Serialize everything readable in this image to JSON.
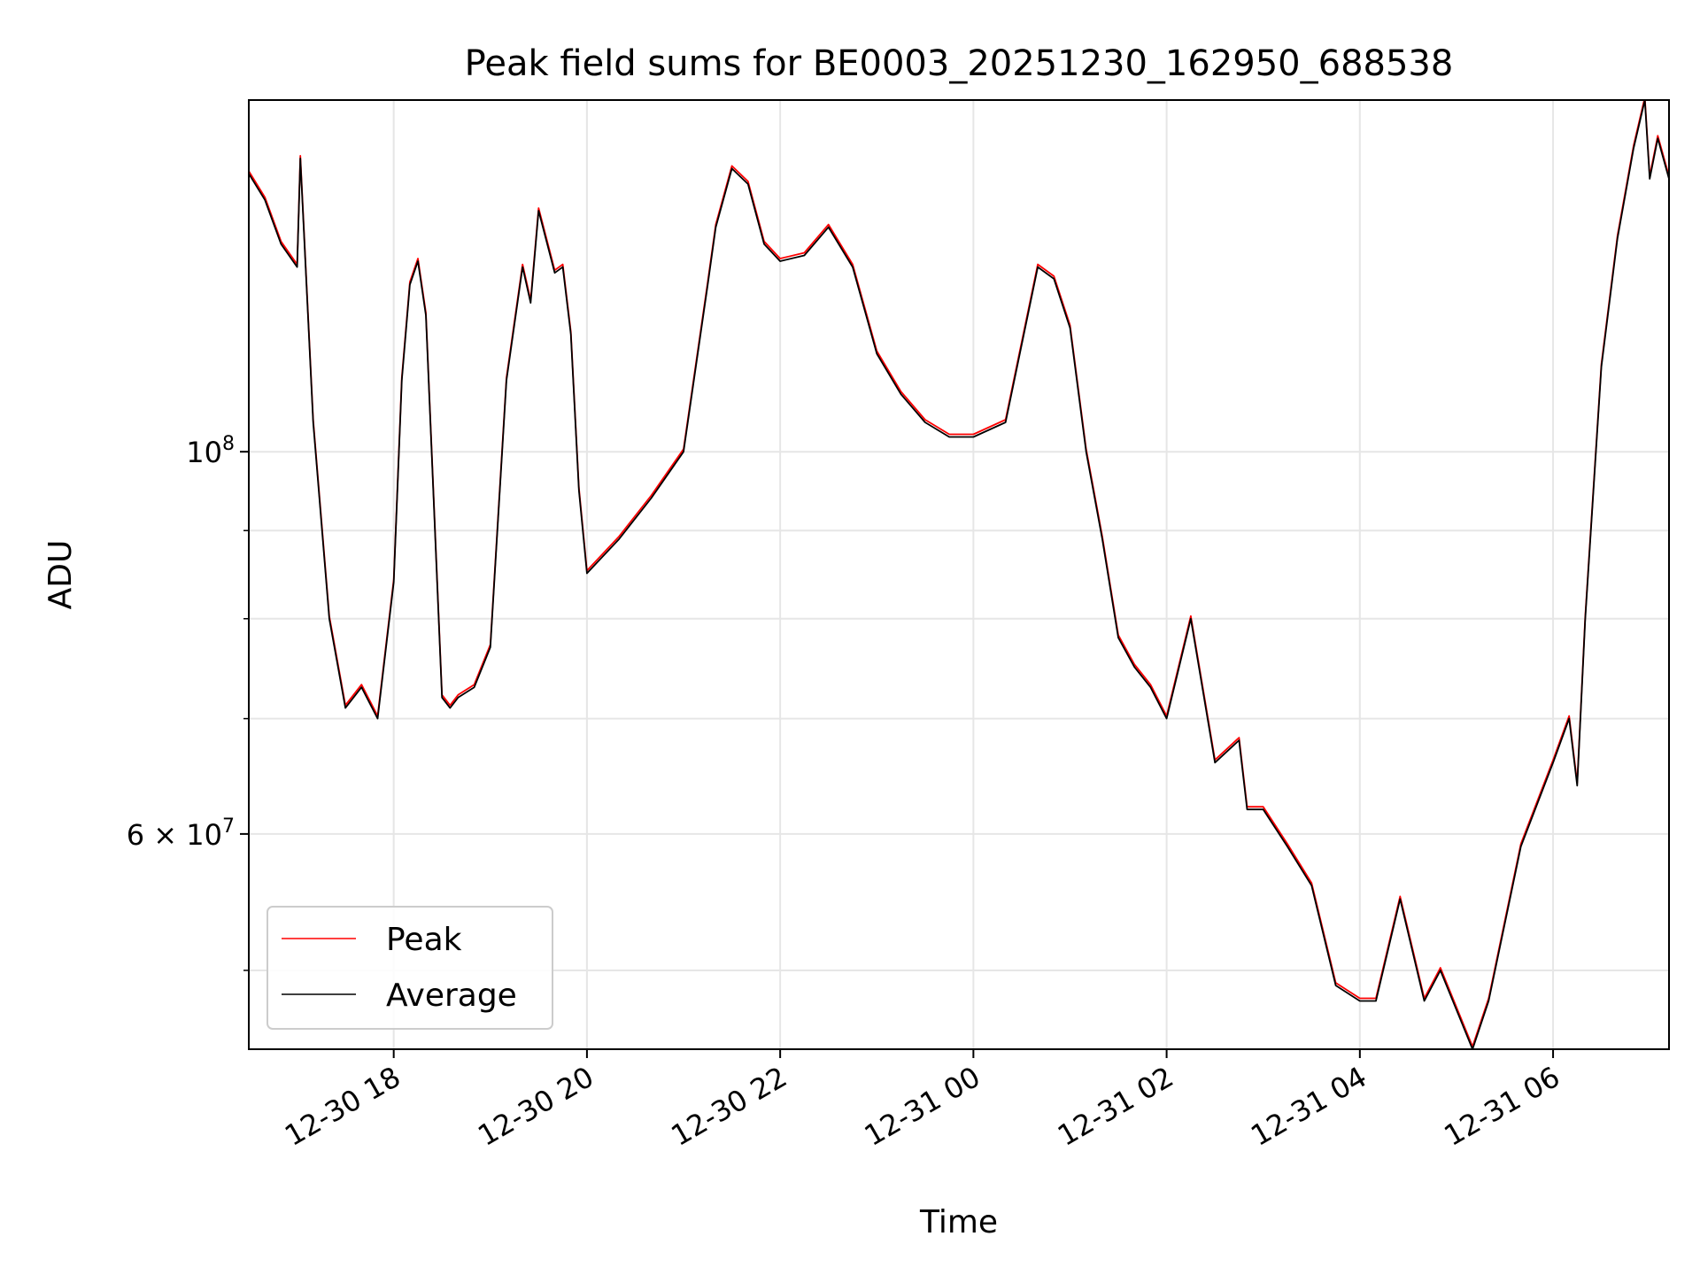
{
  "chart_data": {
    "type": "line",
    "title": "Peak field sums for BE0003_20251230_162950_688538",
    "xlabel": "Time",
    "ylabel": "ADU",
    "yscale": "log",
    "ylim": [
      45000000,
      160000000
    ],
    "xlim": [
      "2025-12-30 16:30",
      "2025-12-31 07:12"
    ],
    "grid": true,
    "legend": "lower-left",
    "x_ticks": [
      {
        "t": "2025-12-30 18:00",
        "label": "12-30 18"
      },
      {
        "t": "2025-12-30 20:00",
        "label": "12-30 20"
      },
      {
        "t": "2025-12-30 22:00",
        "label": "12-30 22"
      },
      {
        "t": "2025-12-31 00:00",
        "label": "12-31 00"
      },
      {
        "t": "2025-12-31 02:00",
        "label": "12-31 02"
      },
      {
        "t": "2025-12-31 04:00",
        "label": "12-31 04"
      },
      {
        "t": "2025-12-31 06:00",
        "label": "12-31 06"
      }
    ],
    "y_major_ticks": [
      {
        "value": 100000000,
        "base": "10",
        "exp": "8"
      },
      {
        "value": 60000000,
        "base": "6 × 10",
        "exp": "7"
      }
    ],
    "y_minor_ticks": [
      50000000,
      70000000,
      80000000,
      90000000
    ],
    "series": [
      {
        "name": "Peak",
        "color": "#ff0000"
      },
      {
        "name": "Average",
        "color": "#000000"
      }
    ],
    "x": [
      "2025-12-30 16:30",
      "2025-12-30 16:40",
      "2025-12-30 16:50",
      "2025-12-30 17:00",
      "2025-12-30 17:02",
      "2025-12-30 17:10",
      "2025-12-30 17:20",
      "2025-12-30 17:30",
      "2025-12-30 17:40",
      "2025-12-30 17:50",
      "2025-12-30 18:00",
      "2025-12-30 18:05",
      "2025-12-30 18:10",
      "2025-12-30 18:15",
      "2025-12-30 18:20",
      "2025-12-30 18:30",
      "2025-12-30 18:35",
      "2025-12-30 18:40",
      "2025-12-30 18:50",
      "2025-12-30 19:00",
      "2025-12-30 19:10",
      "2025-12-30 19:20",
      "2025-12-30 19:25",
      "2025-12-30 19:30",
      "2025-12-30 19:40",
      "2025-12-30 19:45",
      "2025-12-30 19:50",
      "2025-12-30 19:55",
      "2025-12-30 20:00",
      "2025-12-30 20:20",
      "2025-12-30 20:40",
      "2025-12-30 21:00",
      "2025-12-30 21:15",
      "2025-12-30 21:20",
      "2025-12-30 21:30",
      "2025-12-30 21:40",
      "2025-12-30 21:50",
      "2025-12-30 22:00",
      "2025-12-30 22:15",
      "2025-12-30 22:30",
      "2025-12-30 22:45",
      "2025-12-30 23:00",
      "2025-12-30 23:15",
      "2025-12-30 23:30",
      "2025-12-30 23:45",
      "2025-12-31 00:00",
      "2025-12-31 00:20",
      "2025-12-31 00:40",
      "2025-12-31 00:50",
      "2025-12-31 01:00",
      "2025-12-31 01:10",
      "2025-12-31 01:20",
      "2025-12-31 01:30",
      "2025-12-31 01:40",
      "2025-12-31 01:50",
      "2025-12-31 02:00",
      "2025-12-31 02:15",
      "2025-12-31 02:30",
      "2025-12-31 02:45",
      "2025-12-31 02:50",
      "2025-12-31 03:00",
      "2025-12-31 03:15",
      "2025-12-31 03:30",
      "2025-12-31 03:45",
      "2025-12-31 04:00",
      "2025-12-31 04:10",
      "2025-12-31 04:25",
      "2025-12-31 04:40",
      "2025-12-31 04:50",
      "2025-12-31 05:10",
      "2025-12-31 05:20",
      "2025-12-31 05:40",
      "2025-12-31 06:00",
      "2025-12-31 06:10",
      "2025-12-31 06:15",
      "2025-12-31 06:20",
      "2025-12-31 06:30",
      "2025-12-31 06:40",
      "2025-12-31 06:50",
      "2025-12-31 06:57",
      "2025-12-31 07:00",
      "2025-12-31 07:05",
      "2025-12-31 07:12"
    ],
    "values": [
      145000000,
      140000000,
      132000000,
      128000000,
      148000000,
      104000000,
      80000000,
      71000000,
      73000000,
      70000000,
      84000000,
      110000000,
      125000000,
      129000000,
      120000000,
      72000000,
      71000000,
      72000000,
      73000000,
      77000000,
      110000000,
      128000000,
      122000000,
      138000000,
      127000000,
      128000000,
      117000000,
      95000000,
      85000000,
      89000000,
      94000000,
      100000000,
      125000000,
      135000000,
      146000000,
      143000000,
      132000000,
      129000000,
      130000000,
      135000000,
      128000000,
      114000000,
      108000000,
      104000000,
      102000000,
      102000000,
      104000000,
      128000000,
      126000000,
      118000000,
      100000000,
      89000000,
      78000000,
      75000000,
      73000000,
      70000000,
      80000000,
      66000000,
      68000000,
      62000000,
      62000000,
      59000000,
      56000000,
      49000000,
      48000000,
      48000000,
      55000000,
      48000000,
      50000000,
      45000000,
      48000000,
      59000000,
      66000000,
      70000000,
      64000000,
      80000000,
      112000000,
      133000000,
      150000000,
      160000000,
      144000000,
      152000000,
      144000000
    ]
  }
}
